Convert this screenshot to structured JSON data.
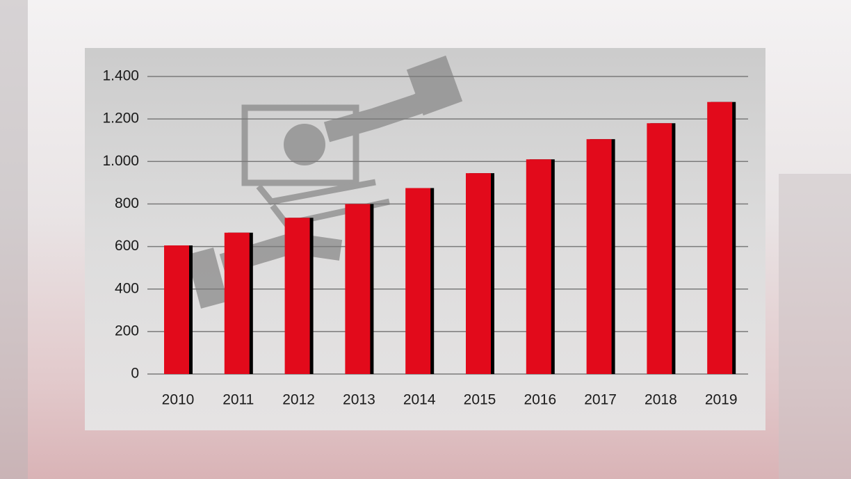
{
  "chart_data": {
    "type": "bar",
    "categories": [
      "2010",
      "2011",
      "2012",
      "2013",
      "2014",
      "2015",
      "2016",
      "2017",
      "2018",
      "2019"
    ],
    "values": [
      605,
      665,
      735,
      800,
      875,
      945,
      1010,
      1105,
      1180,
      1280
    ],
    "color": "#e20a1b",
    "ylim": [
      0,
      1400
    ],
    "yticks": [
      0,
      200,
      400,
      600,
      800,
      {
        "value": 1000,
        "label": "1.000"
      },
      {
        "value": 1200,
        "label": "1.200"
      },
      {
        "value": 1400,
        "label": "1.400"
      }
    ],
    "grid": true
  }
}
